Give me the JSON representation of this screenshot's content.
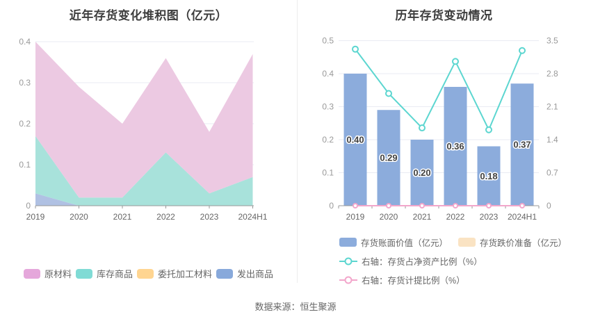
{
  "source": "数据来源：恒生聚源",
  "colors": {
    "background": "#FFFFFF",
    "grid": "#E9EBF3",
    "axis": "#999999",
    "tick_label": "#999999",
    "category_label": "#666666",
    "legend_text": "#666666",
    "title": "#3D3D3D",
    "bar_label": "#404040",
    "divider": "#EDEDED",
    "source_text": "#666666"
  },
  "chart_data": [
    {
      "type": "area",
      "stacked": true,
      "title": "近年存货变化堆积图（亿元）",
      "categories": [
        "2019",
        "2020",
        "2021",
        "2022",
        "2023",
        "2024H1"
      ],
      "series": [
        {
          "name": "原材料",
          "values": [
            0.23,
            0.27,
            0.18,
            0.23,
            0.15,
            0.3
          ],
          "color": "#E5A7DB",
          "area_color": "#ECC9E2"
        },
        {
          "name": "库存商品",
          "values": [
            0.14,
            0.02,
            0.02,
            0.13,
            0.03,
            0.07
          ],
          "color": "#80DBD5",
          "area_color": "#A8E2DB"
        },
        {
          "name": "委托加工材料",
          "values": [
            0,
            0,
            0,
            0,
            0,
            0
          ],
          "color": "#FFD591",
          "area_color": "#FFE4BE"
        },
        {
          "name": "发出商品",
          "values": [
            0.03,
            0,
            0,
            0,
            0,
            0
          ],
          "color": "#88A9DB",
          "area_color": "#B0C1E3"
        }
      ],
      "stack_note": "series stack bottom-to-top in reverse of listed (legend) order",
      "ylim": [
        0,
        0.4
      ],
      "yticks": [
        "0",
        "0.1",
        "0.2",
        "0.3",
        "0.4"
      ],
      "grid": true,
      "legend_position": "bottom"
    },
    {
      "type": "bar",
      "title": "历年存货变动情况",
      "categories": [
        "2019",
        "2020",
        "2021",
        "2022",
        "2023",
        "2024H1"
      ],
      "series": [
        {
          "name": "存货账面价值（亿元）",
          "kind": "bar",
          "axis": "left",
          "values": [
            0.4,
            0.29,
            0.2,
            0.36,
            0.18,
            0.37
          ],
          "labels": [
            "0.40",
            "0.29",
            "0.20",
            "0.36",
            "0.18",
            "0.37"
          ],
          "color": "#8CACDC"
        },
        {
          "name": "存货跌价准备（亿元）",
          "kind": "bar",
          "axis": "left",
          "values": [
            0,
            0,
            0,
            0,
            0,
            0
          ],
          "color": "#FAE3C3"
        },
        {
          "name": "右轴：存货占净资产比例（%）",
          "kind": "line",
          "axis": "right",
          "values": [
            3.32,
            2.38,
            1.65,
            3.06,
            1.61,
            3.29
          ],
          "color": "#5CD6D0",
          "marker_r": 4
        },
        {
          "name": "右轴：存货计提比例（%）",
          "kind": "line",
          "axis": "right",
          "values": [
            0,
            0,
            0,
            0,
            0,
            0
          ],
          "color": "#F2A6CB",
          "marker_r": 3
        }
      ],
      "left_ylim": [
        0,
        0.5
      ],
      "left_yticks": [
        "0",
        "0.1",
        "0.2",
        "0.3",
        "0.4",
        "0.5"
      ],
      "right_ylim": [
        0,
        3.5
      ],
      "right_yticks": [
        "0",
        "0.7",
        "1.4",
        "2.1",
        "2.8",
        "3.5"
      ],
      "grid": true,
      "legend_position": "bottom"
    }
  ]
}
